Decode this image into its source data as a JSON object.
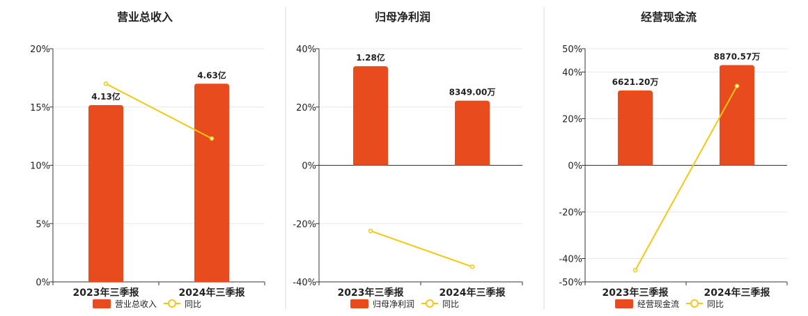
{
  "chart_data": [
    {
      "type": "bar",
      "title": "营业总收入",
      "categories": [
        "2023年三季报",
        "2024年三季报"
      ],
      "bar_labels": [
        "4.13亿",
        "4.63亿"
      ],
      "bar_values": [
        4.13,
        4.63
      ],
      "line_values": [
        17.0,
        12.3
      ],
      "yticks": [
        "20%",
        "15%",
        "10%",
        "5%",
        "0%"
      ],
      "ylim": [
        0,
        20
      ],
      "legend": [
        "营业总收入",
        "同比"
      ],
      "bar_color": "#e84c1e",
      "line_color": "#f2c811"
    },
    {
      "type": "bar",
      "title": "归母净利润",
      "categories": [
        "2023年三季报",
        "2024年三季报"
      ],
      "bar_labels": [
        "1.28亿",
        "8349.00万"
      ],
      "bar_values": [
        1.28,
        0.8349
      ],
      "line_values": [
        -22.5,
        -34.8
      ],
      "yticks": [
        "40%",
        "20%",
        "0%",
        "-20%",
        "-40%"
      ],
      "ylim": [
        -40,
        40
      ],
      "legend": [
        "归母净利润",
        "同比"
      ],
      "bar_color": "#e84c1e",
      "line_color": "#f2c811"
    },
    {
      "type": "bar",
      "title": "经营现金流",
      "categories": [
        "2023年三季报",
        "2024年三季报"
      ],
      "bar_labels": [
        "6621.20万",
        "8870.57万"
      ],
      "bar_values": [
        0.66212,
        0.887057
      ],
      "line_values": [
        -45.0,
        34.0
      ],
      "yticks": [
        "50%",
        "40%",
        "20%",
        "0%",
        "-20%",
        "-40%",
        "-50%"
      ],
      "ylim": [
        -50,
        50
      ],
      "legend": [
        "经营现金流",
        "同比"
      ],
      "bar_color": "#e84c1e",
      "line_color": "#f2c811"
    }
  ]
}
